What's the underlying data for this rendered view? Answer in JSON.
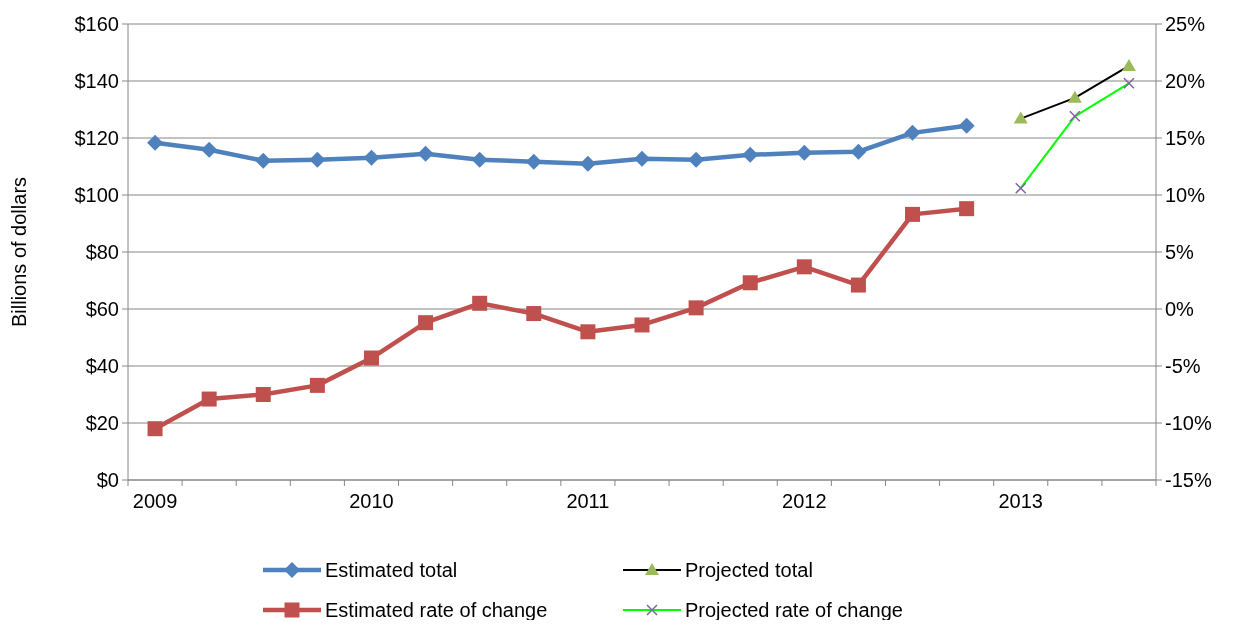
{
  "chart_data": {
    "type": "line",
    "ylabel": "Billions of dollars",
    "categories": [
      "2009",
      null,
      null,
      null,
      "2010",
      null,
      null,
      null,
      "2011",
      null,
      null,
      null,
      "2012",
      null,
      null,
      null,
      "2013",
      null,
      null
    ],
    "series": [
      {
        "name": "Estimated total",
        "color": "#4f81bd",
        "marker": "diamond",
        "values": [
          118.3,
          115.9,
          112.0,
          112.4,
          113.1,
          114.5,
          112.4,
          111.7,
          111.0,
          112.7,
          112.4,
          114.1,
          114.8,
          115.2,
          121.8,
          124.3,
          null,
          null,
          null
        ]
      },
      {
        "name": "Estimated rate of change",
        "color": "#c0504d",
        "marker": "square",
        "axis": "y2",
        "values": [
          -10.5,
          -7.9,
          -7.5,
          -6.7,
          -4.3,
          -1.2,
          0.5,
          -0.4,
          -2.0,
          -1.4,
          0.1,
          2.3,
          3.7,
          2.1,
          8.3,
          8.8,
          null,
          null,
          null
        ]
      },
      {
        "name": "Projected total",
        "color": "#000000",
        "marker": "triangle",
        "colors": [
          null,
          null,
          null,
          null,
          null,
          null,
          null,
          null,
          null,
          null,
          null,
          null,
          null,
          null,
          null,
          null,
          "#9bbb59",
          "#9bbb59",
          "#9bbb59"
        ],
        "values": [
          null,
          null,
          null,
          null,
          null,
          null,
          null,
          null,
          null,
          null,
          null,
          null,
          null,
          null,
          null,
          null,
          126.8,
          134.1,
          145.3
        ]
      },
      {
        "name": "Projected rate of change",
        "color": "#00ff00",
        "marker": "cross",
        "axis": "y2",
        "colors": [
          null,
          null,
          null,
          null,
          null,
          null,
          null,
          null,
          null,
          null,
          null,
          null,
          null,
          null,
          null,
          null,
          "#8064a2",
          "#8064a2",
          "#8064a2"
        ],
        "values": [
          null,
          null,
          null,
          null,
          null,
          null,
          null,
          null,
          null,
          null,
          null,
          null,
          null,
          null,
          null,
          null,
          10.6,
          16.9,
          19.8
        ]
      }
    ],
    "ylim": [
      0,
      160
    ],
    "yticks": [
      {
        "value": 0,
        "label": "$0"
      },
      {
        "value": 20,
        "label": "$20"
      },
      {
        "value": 40,
        "label": "$40"
      },
      {
        "value": 60,
        "label": "$60"
      },
      {
        "value": 80,
        "label": "$80"
      },
      {
        "value": 100,
        "label": "$100"
      },
      {
        "value": 120,
        "label": "$120"
      },
      {
        "value": 140,
        "label": "$140"
      },
      {
        "value": 160,
        "label": "$160"
      }
    ],
    "y2lim": [
      -15,
      25
    ],
    "y2ticks": [
      {
        "value": -15,
        "label": "-15%"
      },
      {
        "value": -10,
        "label": "-10%"
      },
      {
        "value": -5,
        "label": "-5%"
      },
      {
        "value": 0,
        "label": "0%"
      },
      {
        "value": 5,
        "label": "5%"
      },
      {
        "value": 10,
        "label": "10%"
      },
      {
        "value": 15,
        "label": "15%"
      },
      {
        "value": 20,
        "label": "20%"
      },
      {
        "value": 25,
        "label": "25%"
      }
    ],
    "grid": "y",
    "legend": "bottom",
    "line_style": "solid"
  }
}
